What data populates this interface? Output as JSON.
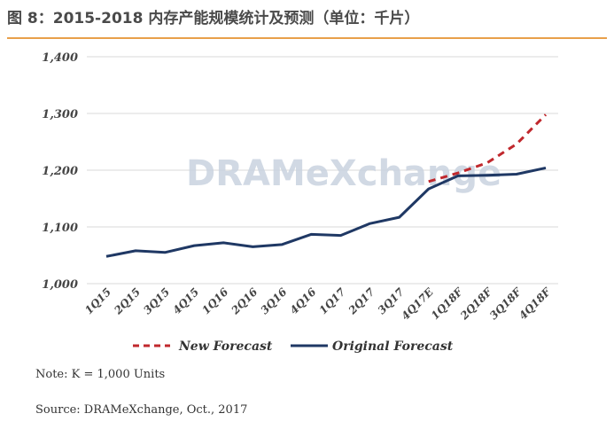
{
  "figure": {
    "title": "图 8：2015-2018 内存产能规模统计及预测（单位：千片）",
    "note": "Note: K = 1,000 Units",
    "source": "Source: DRAMeXchange, Oct., 2017",
    "watermark": "DRAMeXchange"
  },
  "colors": {
    "accent": "#e8a04a",
    "original": "#1f3864",
    "forecast": "#c0282d",
    "grid": "#d9d9d9"
  },
  "chart_data": {
    "type": "line",
    "categories": [
      "1Q15",
      "2Q15",
      "3Q15",
      "4Q15",
      "1Q16",
      "2Q16",
      "3Q16",
      "4Q16",
      "1Q17",
      "2Q17",
      "3Q17",
      "4Q17E",
      "1Q18F",
      "2Q18F",
      "3Q18F",
      "4Q18F"
    ],
    "ylim": [
      1000,
      1400
    ],
    "yticks": [
      1000,
      1100,
      1200,
      1300,
      1400
    ],
    "ytick_labels": [
      "1,000",
      "1,100",
      "1,200",
      "1,300",
      "1,400"
    ],
    "grid": true,
    "legend_position": "bottom",
    "series": [
      {
        "name": "Original Forecast",
        "style": "solid",
        "color": "#1f3864",
        "values": [
          1048,
          1058,
          1055,
          1067,
          1072,
          1065,
          1069,
          1087,
          1085,
          1106,
          1117,
          1167,
          1190,
          1191,
          1193,
          1204
        ]
      },
      {
        "name": "New Forecast",
        "style": "dashed",
        "color": "#c0282d",
        "values": [
          null,
          null,
          null,
          null,
          null,
          null,
          null,
          null,
          null,
          null,
          null,
          1180,
          1195,
          1213,
          1246,
          1298
        ]
      }
    ],
    "legend": [
      "New Forecast",
      "Original Forecast"
    ]
  }
}
